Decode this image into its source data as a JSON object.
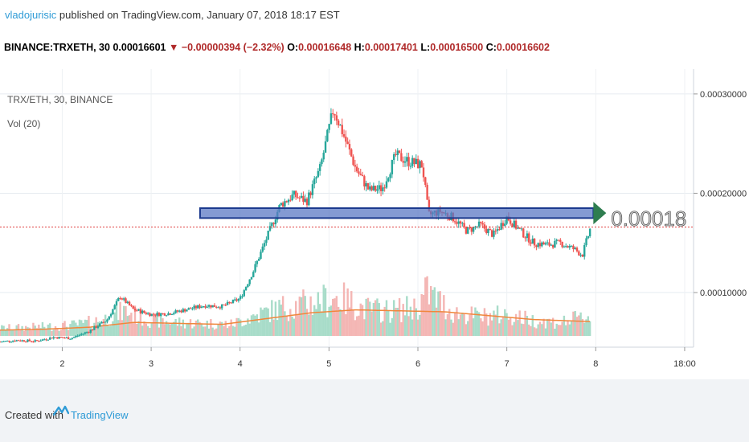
{
  "header": {
    "author": "vladojurisic",
    "published_text": " published on TradingView.com, January 07, 2018 18:17 EST",
    "symbol": "BINANCE:TRXETH, 30",
    "last": "0.00016601",
    "change": "−0.00000394 (−2.32%)",
    "o_label": "O:",
    "o": "0.00016648",
    "h_label": "H:",
    "h": "0.00017401",
    "l_label": "L:",
    "l": "0.00016500",
    "c_label": "C:",
    "c": "0.00016602"
  },
  "legend": {
    "series_title": "TRX/ETH, 30, BINANCE",
    "volume_title": "Vol (20)"
  },
  "footer": {
    "created_with": "Created with",
    "brand": "TradingView"
  },
  "annotation": {
    "price_label": "0.00018",
    "price_value": 0.00018
  },
  "colors": {
    "up": "#26a69a",
    "down": "#ef5350",
    "vol_ma": "#f0873c",
    "box_fill": "#5b78c4",
    "box_stroke": "#1c3a8e",
    "arrow": "#2e7d4f",
    "last_price_line": "#e04040"
  },
  "chart_data": {
    "type": "candlestick",
    "title": "TRX/ETH, 30, BINANCE",
    "y_axis": {
      "ticks": [
        0.0001,
        0.0002,
        0.0003
      ],
      "tick_labels": [
        "0.00010000",
        "0.00020000",
        "0.00030000"
      ],
      "range": [
        4.5e-05,
        0.000325
      ]
    },
    "x_axis": {
      "ticks": [
        2,
        3,
        4,
        5,
        6,
        7,
        8,
        9
      ],
      "tick_labels": [
        "2",
        "3",
        "4",
        "5",
        "6",
        "7",
        "8",
        "18:00"
      ],
      "range": [
        1.3,
        9.1
      ]
    },
    "last_price": 0.000166,
    "price_series": [
      [
        1.3,
        5.05e-05
      ],
      [
        1.5,
        5.2e-05
      ],
      [
        1.7,
        5.1e-05
      ],
      [
        1.9,
        5.5e-05
      ],
      [
        2.1,
        5.4e-05
      ],
      [
        2.3,
        6.1e-05
      ],
      [
        2.5,
        7.2e-05
      ],
      [
        2.65,
        9.6e-05
      ],
      [
        2.8,
        8.3e-05
      ],
      [
        3.0,
        7.8e-05
      ],
      [
        3.2,
        7.9e-05
      ],
      [
        3.4,
        8.3e-05
      ],
      [
        3.6,
        8.7e-05
      ],
      [
        3.8,
        8.6e-05
      ],
      [
        4.0,
        9.4e-05
      ],
      [
        4.15,
        0.000122
      ],
      [
        4.3,
        0.000155
      ],
      [
        4.45,
        0.000188
      ],
      [
        4.6,
        0.000198
      ],
      [
        4.75,
        0.000192
      ],
      [
        4.9,
        0.000225
      ],
      [
        5.05,
        0.000285
      ],
      [
        5.15,
        0.000262
      ],
      [
        5.3,
        0.000225
      ],
      [
        5.45,
        0.000203
      ],
      [
        5.6,
        0.000205
      ],
      [
        5.75,
        0.000238
      ],
      [
        5.9,
        0.000232
      ],
      [
        6.05,
        0.000228
      ],
      [
        6.12,
        0.000178
      ],
      [
        6.25,
        0.000182
      ],
      [
        6.4,
        0.000175
      ],
      [
        6.55,
        0.000162
      ],
      [
        6.7,
        0.000168
      ],
      [
        6.85,
        0.000158
      ],
      [
        7.0,
        0.000176
      ],
      [
        7.15,
        0.000162
      ],
      [
        7.3,
        0.00015
      ],
      [
        7.45,
        0.000148
      ],
      [
        7.6,
        0.00015
      ],
      [
        7.75,
        0.000144
      ],
      [
        7.85,
        0.000138
      ],
      [
        7.95,
        0.000168
      ]
    ],
    "volume_series": [
      [
        1.3,
        8
      ],
      [
        1.6,
        9
      ],
      [
        1.9,
        10
      ],
      [
        2.2,
        12
      ],
      [
        2.5,
        18
      ],
      [
        2.7,
        26
      ],
      [
        3.0,
        16
      ],
      [
        3.3,
        14
      ],
      [
        3.6,
        13
      ],
      [
        3.9,
        12
      ],
      [
        4.2,
        22
      ],
      [
        4.5,
        30
      ],
      [
        4.8,
        34
      ],
      [
        5.1,
        40
      ],
      [
        5.4,
        28
      ],
      [
        5.7,
        26
      ],
      [
        6.0,
        30
      ],
      [
        6.1,
        46
      ],
      [
        6.4,
        24
      ],
      [
        6.7,
        20
      ],
      [
        7.0,
        22
      ],
      [
        7.3,
        16
      ],
      [
        7.6,
        14
      ],
      [
        7.9,
        20
      ]
    ],
    "volume_ma": [
      [
        1.3,
        6
      ],
      [
        1.8,
        7
      ],
      [
        2.3,
        9
      ],
      [
        2.8,
        14
      ],
      [
        3.3,
        13
      ],
      [
        3.8,
        12
      ],
      [
        4.3,
        18
      ],
      [
        4.8,
        24
      ],
      [
        5.3,
        27
      ],
      [
        5.8,
        26
      ],
      [
        6.3,
        25
      ],
      [
        6.8,
        21
      ],
      [
        7.3,
        17
      ],
      [
        7.9,
        15
      ]
    ],
    "annotation_box": {
      "x_start": 3.55,
      "x_end": 8.1,
      "y_low": 0.000175,
      "y_high": 0.000185,
      "label": "0.00018"
    }
  }
}
